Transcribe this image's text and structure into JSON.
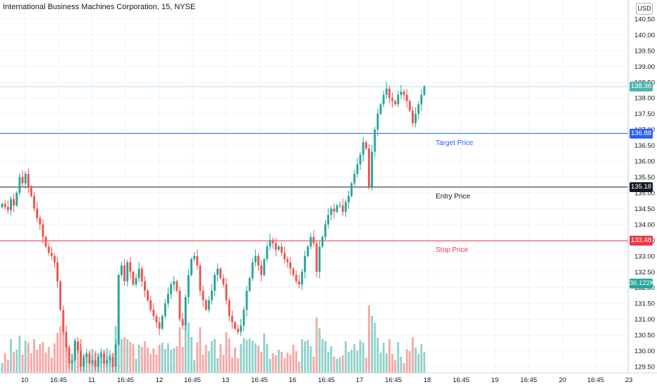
{
  "header": {
    "title": "International Business Machines Corporation, 15, NYSE",
    "currency": "USD"
  },
  "levels": {
    "target": {
      "label": "Target Price",
      "price": 136.88,
      "tag": "136.88",
      "color": "#2962ff"
    },
    "entry": {
      "label": "Entry Price",
      "price": 135.18,
      "tag": "135.18",
      "color": "#131722"
    },
    "stop": {
      "label": "Stop Price",
      "price": 133.48,
      "tag": "133.48",
      "color": "#f23645"
    }
  },
  "last_price": {
    "tag": "138.36",
    "value": 138.36,
    "color": "#4fb5a8"
  },
  "volume_tag": {
    "tag": "36.122K",
    "color": "#26a69a"
  },
  "chart_data": {
    "type": "candlestick",
    "symbol": "International Business Machines Corporation",
    "interval": "15",
    "exchange": "NYSE",
    "currency": "USD",
    "ylim": [
      129.3,
      141.1
    ],
    "y_ticks": [
      "129.50",
      "130.00",
      "130.50",
      "131.00",
      "131.50",
      "132.00",
      "132.50",
      "133.00",
      "133.50",
      "134.00",
      "134.50",
      "135.00",
      "135.50",
      "136.00",
      "136.50",
      "137.00",
      "137.50",
      "138.00",
      "138.50",
      "139.00",
      "139.50",
      "140.00",
      "140.50"
    ],
    "x_ticks": [
      "10",
      "16:45",
      "11",
      "16:45",
      "12",
      "16:45",
      "13",
      "16:45",
      "16",
      "16:45",
      "17",
      "16:45",
      "18",
      "16:45",
      "19",
      "16:45",
      "20",
      "16:45",
      "23"
    ],
    "grid": true,
    "candles": [
      134.65,
      134.55,
      134.45,
      134.8,
      134.6,
      135.0,
      135.5,
      135.3,
      135.6,
      135.2,
      134.9,
      134.5,
      134.2,
      134.0,
      133.6,
      133.3,
      133.1,
      133.0,
      132.8,
      132.2,
      131.3,
      130.6,
      130.1,
      129.6,
      129.7,
      130.3,
      130.0,
      129.5,
      129.8,
      129.9,
      129.6,
      129.7,
      129.5,
      129.8,
      129.9,
      129.6,
      129.7,
      129.8,
      129.5,
      130.2,
      132.4,
      132.7,
      132.2,
      132.8,
      132.5,
      132.1,
      132.3,
      132.6,
      132.2,
      131.9,
      131.6,
      131.3,
      131.1,
      130.9,
      130.7,
      131.1,
      131.5,
      131.8,
      132.1,
      132.2,
      131.9,
      131.0,
      130.8,
      131.7,
      132.4,
      132.9,
      133.0,
      132.7,
      131.9,
      131.6,
      131.3,
      131.6,
      131.9,
      132.4,
      132.6,
      132.3,
      132.1,
      131.6,
      131.1,
      130.9,
      130.7,
      130.6,
      130.8,
      131.3,
      131.9,
      132.3,
      132.8,
      133.0,
      132.7,
      132.4,
      132.9,
      133.3,
      133.5,
      133.4,
      133.2,
      133.3,
      133.1,
      132.9,
      132.8,
      132.6,
      132.4,
      132.2,
      132.1,
      132.5,
      133.0,
      133.3,
      133.6,
      133.4,
      132.5,
      133.3,
      133.6,
      134.0,
      134.3,
      134.5,
      134.4,
      134.6,
      134.6,
      134.4,
      134.7,
      134.9,
      135.3,
      135.6,
      135.9,
      136.2,
      136.6,
      136.4,
      135.2,
      136.3,
      137.0,
      137.5,
      137.8,
      138.1,
      138.3,
      138.0,
      137.9,
      137.8,
      138.1,
      138.2,
      138.1,
      137.9,
      137.6,
      137.2,
      137.5,
      137.8,
      138.1,
      138.36
    ],
    "volume_axis_tag": "36.122K"
  }
}
